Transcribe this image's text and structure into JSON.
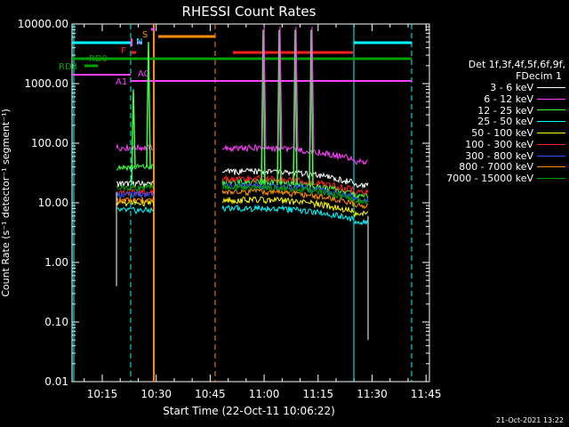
{
  "chart_data": {
    "type": "line",
    "title": "RHESSI Count Rates",
    "xlabel": "Start Time (22-Oct-11 10:06:22)",
    "ylabel": "Count Rate (s⁻¹ detector⁻¹ segment⁻¹)",
    "yscale": "log",
    "ylim": [
      0.01,
      10000
    ],
    "xlim_minutes": [
      10.13,
      11.78
    ],
    "x_ticks": [
      "10:15",
      "10:30",
      "10:45",
      "11:00",
      "11:15",
      "11:30",
      "11:45"
    ],
    "y_ticks": [
      "10000.00",
      "1000.00",
      "100.00",
      "10.00",
      "1.00",
      "0.10",
      "0.01"
    ],
    "legend_header": "Det 1f,3f,4f,5f,6f,9f,",
    "legend_subheader": "FDecim 1",
    "series": [
      {
        "name": "3 - 6 keV",
        "color": "#ffffff",
        "level": 33,
        "pre": 21
      },
      {
        "name": "6 - 12 keV",
        "color": "#ff40ff",
        "level": 82,
        "pre": 85
      },
      {
        "name": "12 - 25 keV",
        "color": "#40ff40",
        "level": 22,
        "pre": 40
      },
      {
        "name": "25 - 50 keV",
        "color": "#00ffff",
        "level": 8,
        "pre": 7.5
      },
      {
        "name": "50 - 100 keV",
        "color": "#ffff00",
        "level": 11,
        "pre": 10
      },
      {
        "name": "100 - 300 keV",
        "color": "#ff2020",
        "level": 25,
        "pre": 15
      },
      {
        "name": "300 - 800 keV",
        "color": "#3050ff",
        "level": 19,
        "pre": 14
      },
      {
        "name": "800 - 7000 keV",
        "color": "#ff8c00",
        "level": 15,
        "pre": 11
      },
      {
        "name": "7000 - 15000 keV",
        "color": "#00a000",
        "level": 18,
        "pre": 18
      }
    ],
    "flags": [
      {
        "label": "RD0",
        "color": "#00a000"
      },
      {
        "label": "RD8",
        "color": "#00a000"
      },
      {
        "label": "A1",
        "color": "#ff40ff"
      },
      {
        "label": "AC",
        "color": "#ff40ff"
      },
      {
        "label": "F",
        "color": "#ff2020"
      },
      {
        "label": "N",
        "color": "#00ffff"
      },
      {
        "label": "S",
        "color": "#ff8c00"
      }
    ]
  },
  "timestamp": "21-Oct-2021 13:22"
}
